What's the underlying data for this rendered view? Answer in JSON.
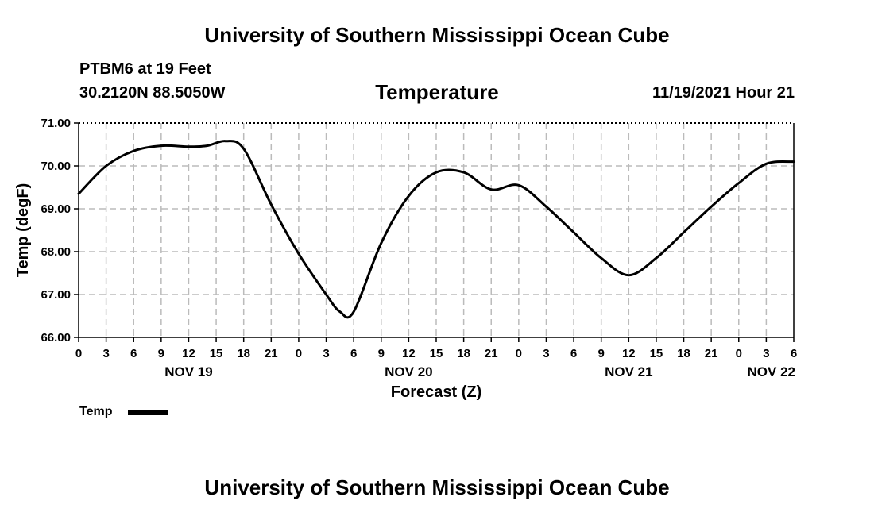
{
  "header": {
    "title_top": "University of Southern Mississippi Ocean Cube",
    "station": "PTBM6 at 19 Feet",
    "coords": "30.2120N  88.5050W",
    "subtitle": "Temperature",
    "datetime": "11/19/2021 Hour 21",
    "title_bottom": "University of Southern Mississippi Ocean Cube"
  },
  "legend": {
    "label": "Temp",
    "color": "#000000"
  },
  "chart_data": {
    "type": "line",
    "title": "Temperature",
    "xlabel": "Forecast (Z)",
    "ylabel": "Temp (degF)",
    "ylim": [
      66.0,
      71.0
    ],
    "y_ticks": [
      "66.00",
      "67.00",
      "68.00",
      "69.00",
      "70.00",
      "71.00"
    ],
    "x_hours_range": [
      0,
      78
    ],
    "x_tick_labels": [
      "0",
      "3",
      "6",
      "9",
      "12",
      "15",
      "18",
      "21",
      "0",
      "3",
      "6",
      "9",
      "12",
      "15",
      "18",
      "21",
      "0",
      "3",
      "6",
      "9",
      "12",
      "15",
      "18",
      "21",
      "0",
      "3",
      "6"
    ],
    "x_date_labels": [
      {
        "hour": 12,
        "label": "NOV 19"
      },
      {
        "hour": 36,
        "label": "NOV 20"
      },
      {
        "hour": 60,
        "label": "NOV 21"
      },
      {
        "hour": 78,
        "label": "NOV 22"
      }
    ],
    "grid": true,
    "series": [
      {
        "name": "Temp",
        "x": [
          0,
          3,
          6,
          9,
          12,
          14,
          16,
          18,
          21,
          24,
          27,
          28.5,
          30,
          33,
          36,
          39,
          42,
          45,
          48,
          51,
          54,
          57,
          60,
          63,
          66,
          69,
          72,
          75,
          78
        ],
        "values": [
          69.35,
          70.0,
          70.35,
          70.47,
          70.45,
          70.47,
          70.58,
          70.4,
          69.1,
          67.95,
          67.0,
          66.6,
          66.6,
          68.2,
          69.3,
          69.85,
          69.85,
          69.45,
          69.55,
          69.05,
          68.45,
          67.85,
          67.45,
          67.85,
          68.45,
          69.05,
          69.6,
          70.05,
          70.1
        ]
      }
    ]
  }
}
